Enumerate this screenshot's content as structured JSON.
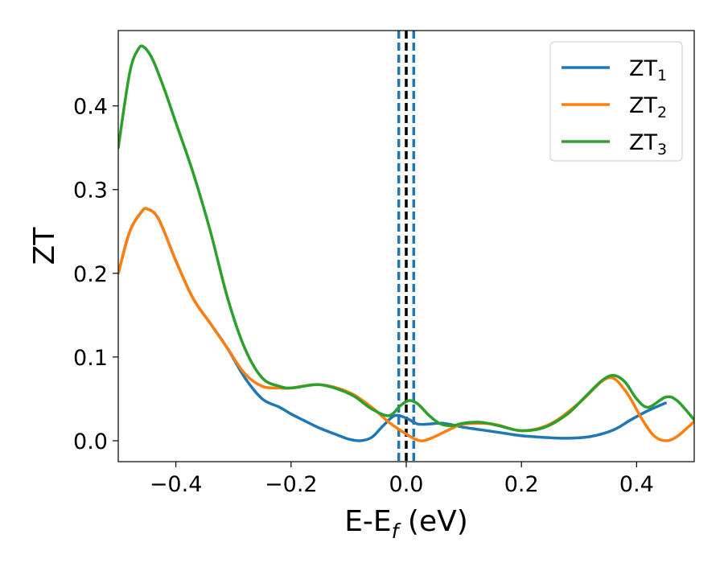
{
  "chart_data": {
    "type": "line",
    "xlabel": "E-E",
    "xlabel_sub": "f",
    "xlabel_unit": " (eV)",
    "ylabel": "ZT",
    "xlim": [
      -0.5,
      0.5
    ],
    "ylim": [
      -0.025,
      0.49
    ],
    "xticks": [
      -0.4,
      -0.2,
      0.0,
      0.2,
      0.4
    ],
    "xtick_labels": [
      "−0.4",
      "−0.2",
      "0.0",
      "0.2",
      "0.4"
    ],
    "yticks": [
      0.0,
      0.1,
      0.2,
      0.3,
      0.4
    ],
    "ytick_labels": [
      "0.0",
      "0.1",
      "0.2",
      "0.3",
      "0.4"
    ],
    "grid": false,
    "legend_position": "top-right",
    "vertical_lines": [
      {
        "x": -0.013,
        "color": "#1f77b4",
        "style": "dashed"
      },
      {
        "x": 0.013,
        "color": "#1f77b4",
        "style": "dashed"
      },
      {
        "x": 0.0,
        "color": "#000000",
        "style": "dashed"
      }
    ],
    "series": [
      {
        "name": "ZT",
        "name_sub": "1",
        "color": "#1f77b4",
        "x": [
          -0.5,
          -0.48,
          -0.46,
          -0.45,
          -0.43,
          -0.4,
          -0.37,
          -0.34,
          -0.31,
          -0.28,
          -0.25,
          -0.22,
          -0.2,
          -0.18,
          -0.15,
          -0.12,
          -0.1,
          -0.08,
          -0.06,
          -0.04,
          -0.02,
          0.0,
          0.02,
          0.04,
          0.06,
          0.08,
          0.1,
          0.13,
          0.16,
          0.2,
          0.24,
          0.28,
          0.32,
          0.36,
          0.39,
          0.42,
          0.45
        ],
        "y": [
          0.2,
          0.25,
          0.273,
          0.277,
          0.265,
          0.215,
          0.17,
          0.14,
          0.11,
          0.075,
          0.05,
          0.04,
          0.032,
          0.025,
          0.015,
          0.007,
          0.002,
          0.0,
          0.004,
          0.018,
          0.03,
          0.027,
          0.02,
          0.02,
          0.021,
          0.019,
          0.016,
          0.013,
          0.01,
          0.006,
          0.004,
          0.003,
          0.005,
          0.013,
          0.025,
          0.036,
          0.045
        ]
      },
      {
        "name": "ZT",
        "name_sub": "2",
        "color": "#ff7f0e",
        "x": [
          -0.5,
          -0.48,
          -0.46,
          -0.45,
          -0.43,
          -0.4,
          -0.37,
          -0.34,
          -0.31,
          -0.28,
          -0.25,
          -0.22,
          -0.2,
          -0.15,
          -0.1,
          -0.06,
          -0.03,
          0.0,
          0.015,
          0.03,
          0.05,
          0.08,
          0.1,
          0.15,
          0.2,
          0.25,
          0.3,
          0.35,
          0.38,
          0.41,
          0.43,
          0.45,
          0.47,
          0.5
        ],
        "y": [
          0.2,
          0.25,
          0.273,
          0.277,
          0.265,
          0.215,
          0.17,
          0.14,
          0.11,
          0.08,
          0.065,
          0.063,
          0.063,
          0.067,
          0.058,
          0.04,
          0.022,
          0.008,
          0.002,
          0.0,
          0.005,
          0.015,
          0.02,
          0.02,
          0.012,
          0.02,
          0.045,
          0.075,
          0.06,
          0.025,
          0.006,
          0.0,
          0.005,
          0.023
        ]
      },
      {
        "name": "ZT",
        "name_sub": "3",
        "color": "#2ca02c",
        "x": [
          -0.5,
          -0.48,
          -0.465,
          -0.455,
          -0.44,
          -0.42,
          -0.4,
          -0.37,
          -0.34,
          -0.31,
          -0.28,
          -0.25,
          -0.22,
          -0.2,
          -0.17,
          -0.15,
          -0.12,
          -0.09,
          -0.06,
          -0.03,
          -0.01,
          0.005,
          0.02,
          0.04,
          0.06,
          0.08,
          0.1,
          0.13,
          0.16,
          0.2,
          0.24,
          0.28,
          0.31,
          0.34,
          0.36,
          0.38,
          0.4,
          0.42,
          0.45,
          0.47,
          0.5
        ],
        "y": [
          0.35,
          0.44,
          0.468,
          0.47,
          0.455,
          0.42,
          0.38,
          0.32,
          0.25,
          0.17,
          0.11,
          0.075,
          0.065,
          0.063,
          0.066,
          0.067,
          0.062,
          0.053,
          0.038,
          0.03,
          0.042,
          0.048,
          0.044,
          0.03,
          0.02,
          0.018,
          0.021,
          0.022,
          0.018,
          0.012,
          0.016,
          0.032,
          0.052,
          0.072,
          0.078,
          0.07,
          0.05,
          0.04,
          0.052,
          0.048,
          0.025
        ]
      }
    ]
  }
}
